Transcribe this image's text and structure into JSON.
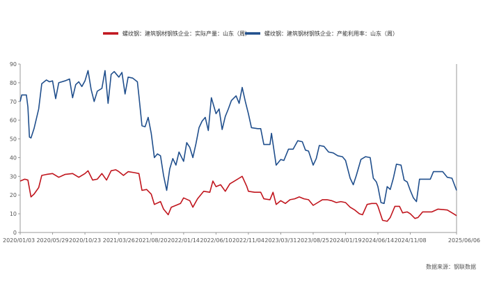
{
  "chart_data": {
    "type": "line",
    "title": "",
    "xlabel": "",
    "ylabel": "",
    "ylim": [
      0,
      90
    ],
    "yticks": [
      0,
      10,
      20,
      30,
      40,
      50,
      60,
      70,
      80,
      90
    ],
    "xlim": [
      "2020/01/03",
      "2025/06/06"
    ],
    "xtick_labels": [
      "2020/01/03",
      "2020/05/29",
      "2020/10/23",
      "2021/03/26",
      "2021/08/20",
      "2022/01/14",
      "2022/06/10",
      "2022/11/04",
      "2023/03/31",
      "2023/08/25",
      "2024/01/19",
      "2024/06/14",
      "2024/11/08",
      "2025/06/06"
    ],
    "grid": false,
    "legend_position": "top-center",
    "source": "数据来源：钢联数据",
    "series": [
      {
        "name": "螺纹钢：建筑钢材钢铁企业：实际产量：山东（周）",
        "color": "#c0141c",
        "points": [
          [
            "2020/01/03",
            27.5
          ],
          [
            "2020/01/24",
            28.5
          ],
          [
            "2020/02/07",
            28.0
          ],
          [
            "2020/02/21",
            19.0
          ],
          [
            "2020/03/06",
            20.5
          ],
          [
            "2020/03/27",
            24.0
          ],
          [
            "2020/04/10",
            30.5
          ],
          [
            "2020/05/01",
            31.0
          ],
          [
            "2020/05/29",
            31.5
          ],
          [
            "2020/06/26",
            29.5
          ],
          [
            "2020/07/24",
            31.0
          ],
          [
            "2020/08/28",
            31.5
          ],
          [
            "2020/09/25",
            29.5
          ],
          [
            "2020/10/23",
            31.5
          ],
          [
            "2020/11/06",
            33.0
          ],
          [
            "2020/11/27",
            28.0
          ],
          [
            "2020/12/18",
            28.5
          ],
          [
            "2021/01/08",
            31.5
          ],
          [
            "2021/01/29",
            28.0
          ],
          [
            "2021/02/19",
            33.0
          ],
          [
            "2021/03/12",
            33.5
          ],
          [
            "2021/03/26",
            32.5
          ],
          [
            "2021/04/16",
            30.5
          ],
          [
            "2021/05/07",
            32.5
          ],
          [
            "2021/06/04",
            32.0
          ],
          [
            "2021/06/25",
            31.5
          ],
          [
            "2021/07/09",
            22.5
          ],
          [
            "2021/07/30",
            23.0
          ],
          [
            "2021/08/20",
            20.5
          ],
          [
            "2021/09/03",
            15.0
          ],
          [
            "2021/10/01",
            16.5
          ],
          [
            "2021/10/15",
            12.5
          ],
          [
            "2021/11/05",
            9.5
          ],
          [
            "2021/11/19",
            13.5
          ],
          [
            "2021/12/10",
            14.5
          ],
          [
            "2021/12/31",
            15.5
          ],
          [
            "2022/01/14",
            18.5
          ],
          [
            "2022/02/11",
            17.0
          ],
          [
            "2022/02/25",
            13.5
          ],
          [
            "2022/03/18",
            18.0
          ],
          [
            "2022/04/15",
            22.0
          ],
          [
            "2022/05/13",
            21.5
          ],
          [
            "2022/05/27",
            27.5
          ],
          [
            "2022/06/10",
            24.5
          ],
          [
            "2022/07/01",
            25.5
          ],
          [
            "2022/07/22",
            22.0
          ],
          [
            "2022/08/12",
            26.0
          ],
          [
            "2022/09/02",
            27.5
          ],
          [
            "2022/09/23",
            29.0
          ],
          [
            "2022/10/07",
            30.0
          ],
          [
            "2022/10/28",
            24.5
          ],
          [
            "2022/11/04",
            22.0
          ],
          [
            "2022/12/02",
            21.5
          ],
          [
            "2022/12/30",
            21.5
          ],
          [
            "2023/01/13",
            18.0
          ],
          [
            "2023/02/10",
            17.5
          ],
          [
            "2023/02/24",
            21.5
          ],
          [
            "2023/03/10",
            15.0
          ],
          [
            "2023/03/31",
            17.0
          ],
          [
            "2023/04/21",
            15.5
          ],
          [
            "2023/05/12",
            17.5
          ],
          [
            "2023/06/02",
            18.0
          ],
          [
            "2023/06/23",
            19.0
          ],
          [
            "2023/07/14",
            18.0
          ],
          [
            "2023/08/04",
            17.5
          ],
          [
            "2023/08/25",
            14.5
          ],
          [
            "2023/09/15",
            16.0
          ],
          [
            "2023/10/06",
            17.5
          ],
          [
            "2023/10/27",
            17.5
          ],
          [
            "2023/11/17",
            17.0
          ],
          [
            "2023/12/08",
            16.0
          ],
          [
            "2023/12/29",
            16.5
          ],
          [
            "2024/01/19",
            16.0
          ],
          [
            "2024/02/09",
            13.5
          ],
          [
            "2024/03/01",
            12.0
          ],
          [
            "2024/03/22",
            10.0
          ],
          [
            "2024/04/05",
            9.5
          ],
          [
            "2024/04/26",
            15.0
          ],
          [
            "2024/05/17",
            15.5
          ],
          [
            "2024/06/07",
            15.5
          ],
          [
            "2024/06/14",
            14.0
          ],
          [
            "2024/07/05",
            6.5
          ],
          [
            "2024/07/26",
            6.0
          ],
          [
            "2024/08/09",
            8.0
          ],
          [
            "2024/08/30",
            14.0
          ],
          [
            "2024/09/20",
            14.0
          ],
          [
            "2024/10/04",
            10.5
          ],
          [
            "2024/10/25",
            11.0
          ],
          [
            "2024/11/08",
            10.0
          ],
          [
            "2024/11/29",
            7.5
          ],
          [
            "2024/12/13",
            8.0
          ],
          [
            "2025/01/03",
            11.0
          ],
          [
            "2025/02/14",
            11.0
          ],
          [
            "2025/03/14",
            12.5
          ],
          [
            "2025/04/25",
            12.0
          ],
          [
            "2025/05/23",
            10.0
          ],
          [
            "2025/06/06",
            9.0
          ]
        ]
      },
      {
        "name": "螺纹钢：建筑钢材钢铁企业：产能利用率：山东（周）",
        "color": "#1f4e8c",
        "points": [
          [
            "2020/01/03",
            70.0
          ],
          [
            "2020/01/10",
            73.5
          ],
          [
            "2020/01/31",
            73.5
          ],
          [
            "2020/02/07",
            67.0
          ],
          [
            "2020/02/14",
            51.0
          ],
          [
            "2020/02/21",
            50.5
          ],
          [
            "2020/03/06",
            55.5
          ],
          [
            "2020/03/27",
            66.0
          ],
          [
            "2020/04/10",
            79.5
          ],
          [
            "2020/05/01",
            81.5
          ],
          [
            "2020/05/15",
            80.5
          ],
          [
            "2020/05/29",
            81.0
          ],
          [
            "2020/06/12",
            71.5
          ],
          [
            "2020/06/26",
            80.0
          ],
          [
            "2020/07/24",
            81.0
          ],
          [
            "2020/08/14",
            82.0
          ],
          [
            "2020/08/28",
            72.0
          ],
          [
            "2020/09/11",
            79.0
          ],
          [
            "2020/09/25",
            80.5
          ],
          [
            "2020/10/09",
            78.0
          ],
          [
            "2020/10/23",
            81.0
          ],
          [
            "2020/11/06",
            86.5
          ],
          [
            "2020/11/20",
            76.5
          ],
          [
            "2020/12/04",
            70.0
          ],
          [
            "2020/12/18",
            75.5
          ],
          [
            "2021/01/08",
            77.0
          ],
          [
            "2021/01/22",
            86.5
          ],
          [
            "2021/02/05",
            69.0
          ],
          [
            "2021/02/19",
            84.5
          ],
          [
            "2021/03/05",
            86.0
          ],
          [
            "2021/03/26",
            83.0
          ],
          [
            "2021/04/09",
            85.5
          ],
          [
            "2021/04/23",
            74.0
          ],
          [
            "2021/05/07",
            83.0
          ],
          [
            "2021/05/28",
            82.5
          ],
          [
            "2021/06/18",
            80.5
          ],
          [
            "2021/06/25",
            73.0
          ],
          [
            "2021/07/09",
            57.0
          ],
          [
            "2021/07/23",
            56.5
          ],
          [
            "2021/08/06",
            61.5
          ],
          [
            "2021/08/20",
            53.0
          ],
          [
            "2021/09/03",
            40.0
          ],
          [
            "2021/09/17",
            42.0
          ],
          [
            "2021/10/01",
            41.0
          ],
          [
            "2021/10/15",
            30.5
          ],
          [
            "2021/10/29",
            22.5
          ],
          [
            "2021/11/12",
            34.0
          ],
          [
            "2021/11/26",
            39.5
          ],
          [
            "2021/12/10",
            36.0
          ],
          [
            "2021/12/24",
            43.0
          ],
          [
            "2022/01/14",
            38.0
          ],
          [
            "2022/01/28",
            48.0
          ],
          [
            "2022/02/11",
            45.5
          ],
          [
            "2022/02/25",
            40.0
          ],
          [
            "2022/03/11",
            47.5
          ],
          [
            "2022/03/25",
            56.0
          ],
          [
            "2022/04/08",
            59.5
          ],
          [
            "2022/04/22",
            61.5
          ],
          [
            "2022/05/06",
            54.5
          ],
          [
            "2022/05/20",
            72.0
          ],
          [
            "2022/06/10",
            63.5
          ],
          [
            "2022/06/24",
            66.0
          ],
          [
            "2022/07/08",
            55.0
          ],
          [
            "2022/07/22",
            62.0
          ],
          [
            "2022/08/05",
            66.0
          ],
          [
            "2022/08/19",
            70.5
          ],
          [
            "2022/09/09",
            73.0
          ],
          [
            "2022/09/23",
            69.0
          ],
          [
            "2022/10/07",
            77.5
          ],
          [
            "2022/10/21",
            70.0
          ],
          [
            "2022/11/04",
            63.5
          ],
          [
            "2022/11/18",
            56.0
          ],
          [
            "2022/12/16",
            55.5
          ],
          [
            "2022/12/30",
            55.5
          ],
          [
            "2023/01/13",
            47.0
          ],
          [
            "2023/02/10",
            47.0
          ],
          [
            "2023/02/17",
            53.0
          ],
          [
            "2023/03/10",
            36.0
          ],
          [
            "2023/03/31",
            39.0
          ],
          [
            "2023/04/14",
            38.5
          ],
          [
            "2023/05/05",
            44.5
          ],
          [
            "2023/05/26",
            44.5
          ],
          [
            "2023/06/16",
            49.0
          ],
          [
            "2023/07/07",
            48.5
          ],
          [
            "2023/07/21",
            44.0
          ],
          [
            "2023/08/04",
            43.5
          ],
          [
            "2023/08/25",
            36.0
          ],
          [
            "2023/09/08",
            39.5
          ],
          [
            "2023/09/22",
            46.5
          ],
          [
            "2023/10/13",
            46.0
          ],
          [
            "2023/11/03",
            43.0
          ],
          [
            "2023/11/24",
            42.5
          ],
          [
            "2023/12/15",
            41.0
          ],
          [
            "2024/01/05",
            40.5
          ],
          [
            "2024/01/19",
            38.5
          ],
          [
            "2024/02/09",
            29.0
          ],
          [
            "2024/02/23",
            25.5
          ],
          [
            "2024/03/08",
            30.5
          ],
          [
            "2024/03/29",
            39.0
          ],
          [
            "2024/04/19",
            40.5
          ],
          [
            "2024/05/10",
            40.0
          ],
          [
            "2024/05/24",
            29.0
          ],
          [
            "2024/06/07",
            27.0
          ],
          [
            "2024/06/14",
            24.5
          ],
          [
            "2024/06/28",
            16.0
          ],
          [
            "2024/07/12",
            15.5
          ],
          [
            "2024/07/26",
            24.5
          ],
          [
            "2024/08/09",
            23.0
          ],
          [
            "2024/08/23",
            29.0
          ],
          [
            "2024/09/06",
            36.5
          ],
          [
            "2024/09/27",
            36.0
          ],
          [
            "2024/10/11",
            28.0
          ],
          [
            "2024/10/25",
            27.0
          ],
          [
            "2024/11/08",
            22.5
          ],
          [
            "2024/11/22",
            18.5
          ],
          [
            "2024/12/06",
            16.5
          ],
          [
            "2024/12/20",
            28.5
          ],
          [
            "2025/01/10",
            28.5
          ],
          [
            "2025/02/07",
            28.5
          ],
          [
            "2025/02/21",
            32.5
          ],
          [
            "2025/03/14",
            32.5
          ],
          [
            "2025/04/04",
            32.5
          ],
          [
            "2025/04/25",
            29.5
          ],
          [
            "2025/05/16",
            29.0
          ],
          [
            "2025/06/06",
            22.5
          ]
        ]
      }
    ]
  }
}
